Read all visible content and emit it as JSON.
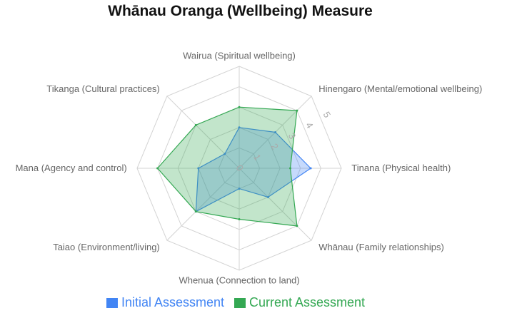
{
  "chart_data": {
    "type": "radar",
    "title": "Whānau Oranga (Wellbeing) Measure",
    "axes": [
      "Wairua (Spiritual wellbeing)",
      "Hinengaro (Mental/emotional wellbeing)",
      "Tinana (Physical health)",
      "Whānau (Family relationships)",
      "Whenua (Connection to land)",
      "Taiao (Environment/living)",
      "Mana (Agency and control)",
      "Tikanga (Cultural practices)"
    ],
    "scale": {
      "min": 0,
      "max": 5,
      "ticks": [
        "0",
        "1",
        "2",
        "3",
        "4",
        "5"
      ]
    },
    "series": [
      {
        "name": "Initial Assessment",
        "color": "#4285f4",
        "values": [
          2.0,
          2.5,
          3.5,
          2.0,
          1.0,
          3.0,
          2.0,
          1.0
        ]
      },
      {
        "name": "Current Assessment",
        "color": "#34a853",
        "values": [
          3.0,
          4.0,
          2.5,
          4.0,
          2.5,
          3.0,
          4.0,
          3.0
        ]
      }
    ],
    "legend": "bottom-center",
    "grid": true
  }
}
